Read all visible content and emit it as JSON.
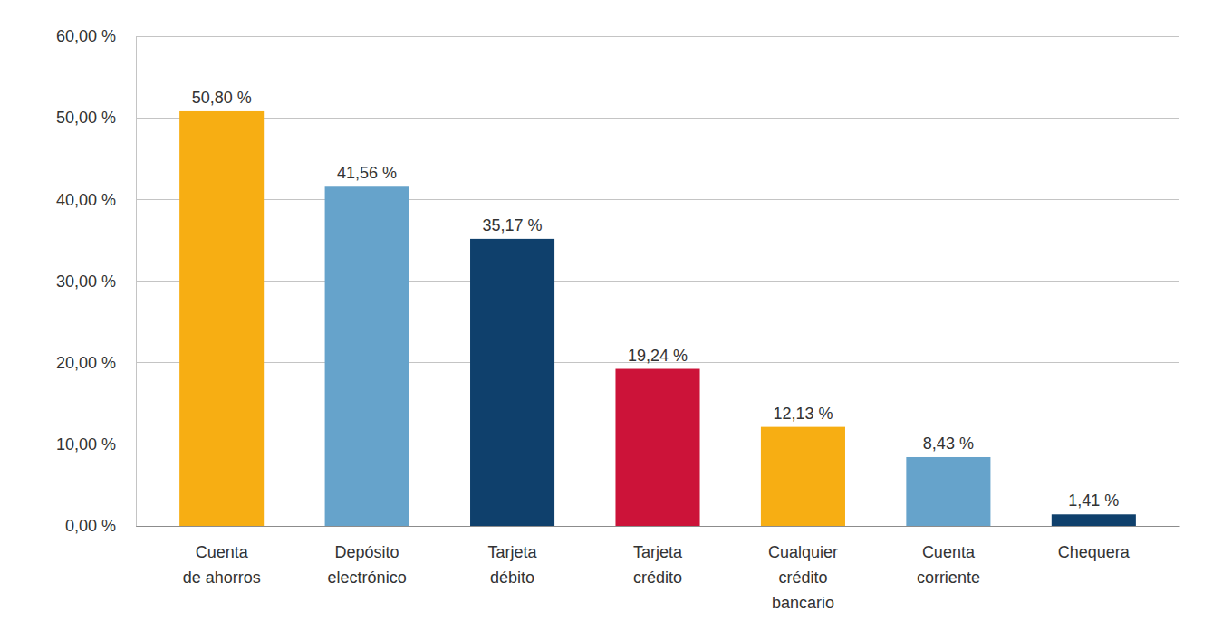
{
  "chart_data": {
    "type": "bar",
    "categories": [
      "Cuenta\nde ahorros",
      "Depósito\nelectrónico",
      "Tarjeta\ndébito",
      "Tarjeta\ncrédito",
      "Cualquier\ncrédito\nbancario",
      "Cuenta\ncorriente",
      "Chequera"
    ],
    "values": [
      50.8,
      41.56,
      35.17,
      19.24,
      12.13,
      8.43,
      1.41
    ],
    "value_labels": [
      "50,80 %",
      "41,56 %",
      "35,17 %",
      "19,24 %",
      "12,13 %",
      "8,43 %",
      "1,41 %"
    ],
    "colors": [
      "#f7ae13",
      "#66a3cb",
      "#0f406c",
      "#cc1339",
      "#f7ae13",
      "#66a3cb",
      "#0f406c"
    ],
    "ylim": [
      0,
      60
    ],
    "yticks": [
      {
        "value": 0,
        "label": "0,00 %"
      },
      {
        "value": 10,
        "label": "10,00 %"
      },
      {
        "value": 20,
        "label": "20,00 %"
      },
      {
        "value": 30,
        "label": "30,00 %"
      },
      {
        "value": 40,
        "label": "40,00 %"
      },
      {
        "value": 50,
        "label": "50,00 %"
      },
      {
        "value": 60,
        "label": "60,00 %"
      }
    ],
    "grid": true,
    "data_labels": true
  }
}
